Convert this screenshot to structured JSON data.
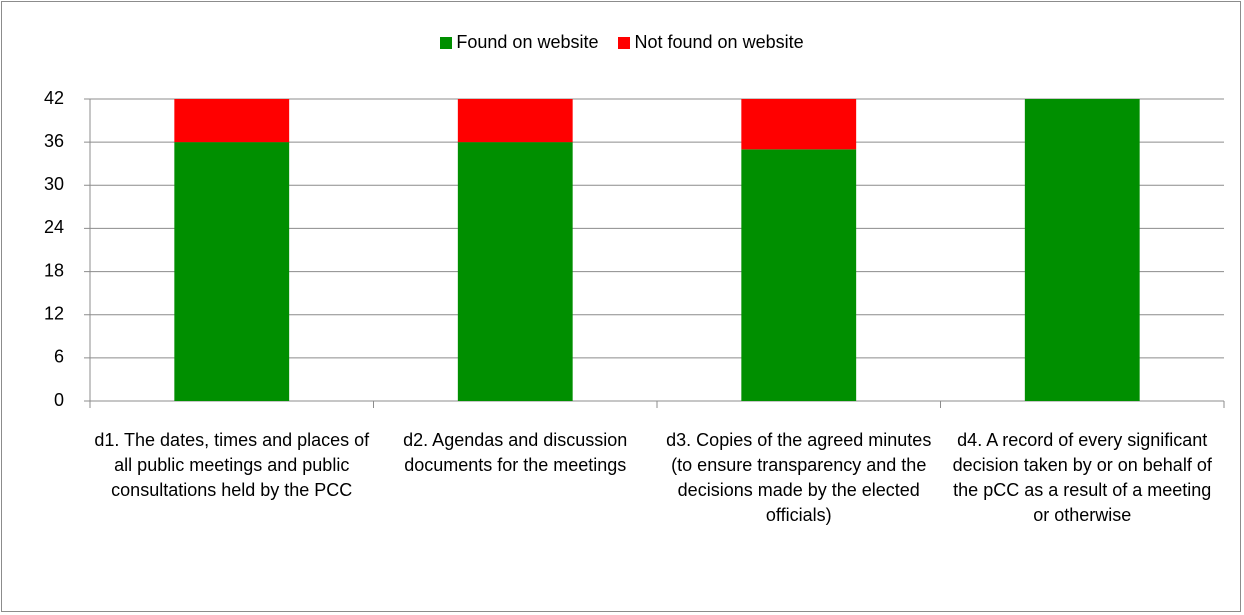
{
  "chart_data": {
    "type": "stacked_bar",
    "categories": [
      "d1. The dates, times and places of all public meetings and public consultations held by the PCC",
      "d2. Agendas and discussion documents for the meetings",
      "d3. Copies of the agreed minutes (to ensure transparency and the decisions made by the elected officials)",
      "d4. A record of every significant decision taken by or on behalf of the pCC as a result of a meeting or otherwise"
    ],
    "series": [
      {
        "name": "Found on website",
        "color": "#008f00",
        "values": [
          36,
          36,
          35,
          42
        ]
      },
      {
        "name": "Not found on website",
        "color": "#ff0000",
        "values": [
          6,
          6,
          7,
          0
        ]
      }
    ],
    "ylim": [
      0,
      42
    ],
    "yticks": [
      0,
      6,
      12,
      18,
      24,
      30,
      36,
      42
    ],
    "grid": true,
    "legend": "top"
  }
}
